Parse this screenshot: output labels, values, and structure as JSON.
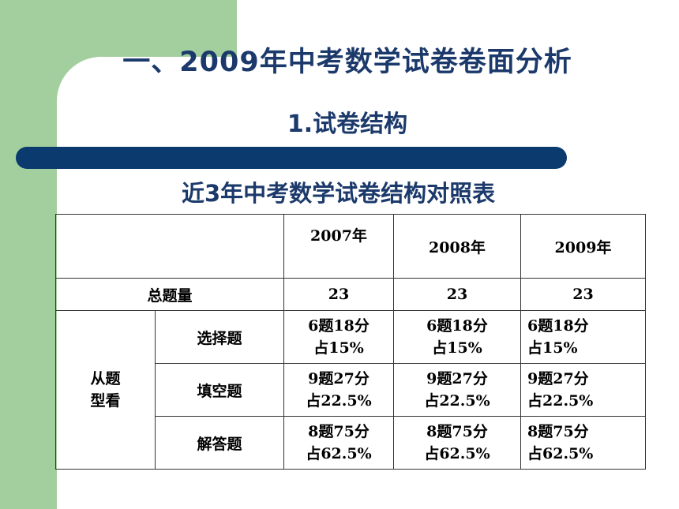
{
  "slide": {
    "title": "一、2009年中考数学试卷卷面分析",
    "subtitle": "1.试卷结构",
    "table_caption": "近3年中考数学试卷结构对照表"
  },
  "table": {
    "years": [
      "2007年",
      "2008年",
      "2009年"
    ],
    "total_label": "总题量",
    "totals": [
      "23",
      "23",
      "23"
    ],
    "group_label_line1": "从题",
    "group_label_line2": "型看",
    "rows": [
      {
        "type": "选择题",
        "cells": [
          {
            "line1": "6题18分",
            "line2": "占15%"
          },
          {
            "line1": "6题18分",
            "line2": "占15%"
          },
          {
            "line1": "6题18分",
            "line2": "占15%"
          }
        ]
      },
      {
        "type": "填空题",
        "cells": [
          {
            "line1": "9题27分",
            "line2": "占22.5%"
          },
          {
            "line1": "9题27分",
            "line2": "占22.5%"
          },
          {
            "line1": "9题27分",
            "line2": "占22.5%"
          }
        ]
      },
      {
        "type": "解答题",
        "cells": [
          {
            "line1": "8题75分",
            "line2": "占62.5%"
          },
          {
            "line1": "8题75分",
            "line2": "占62.5%"
          },
          {
            "line1": "8题75分",
            "line2": "占62.5%"
          }
        ]
      }
    ]
  },
  "colors": {
    "green_accent": "#a3cf9e",
    "navy": "#0a3a6e",
    "title_text": "#1b3a6b"
  }
}
